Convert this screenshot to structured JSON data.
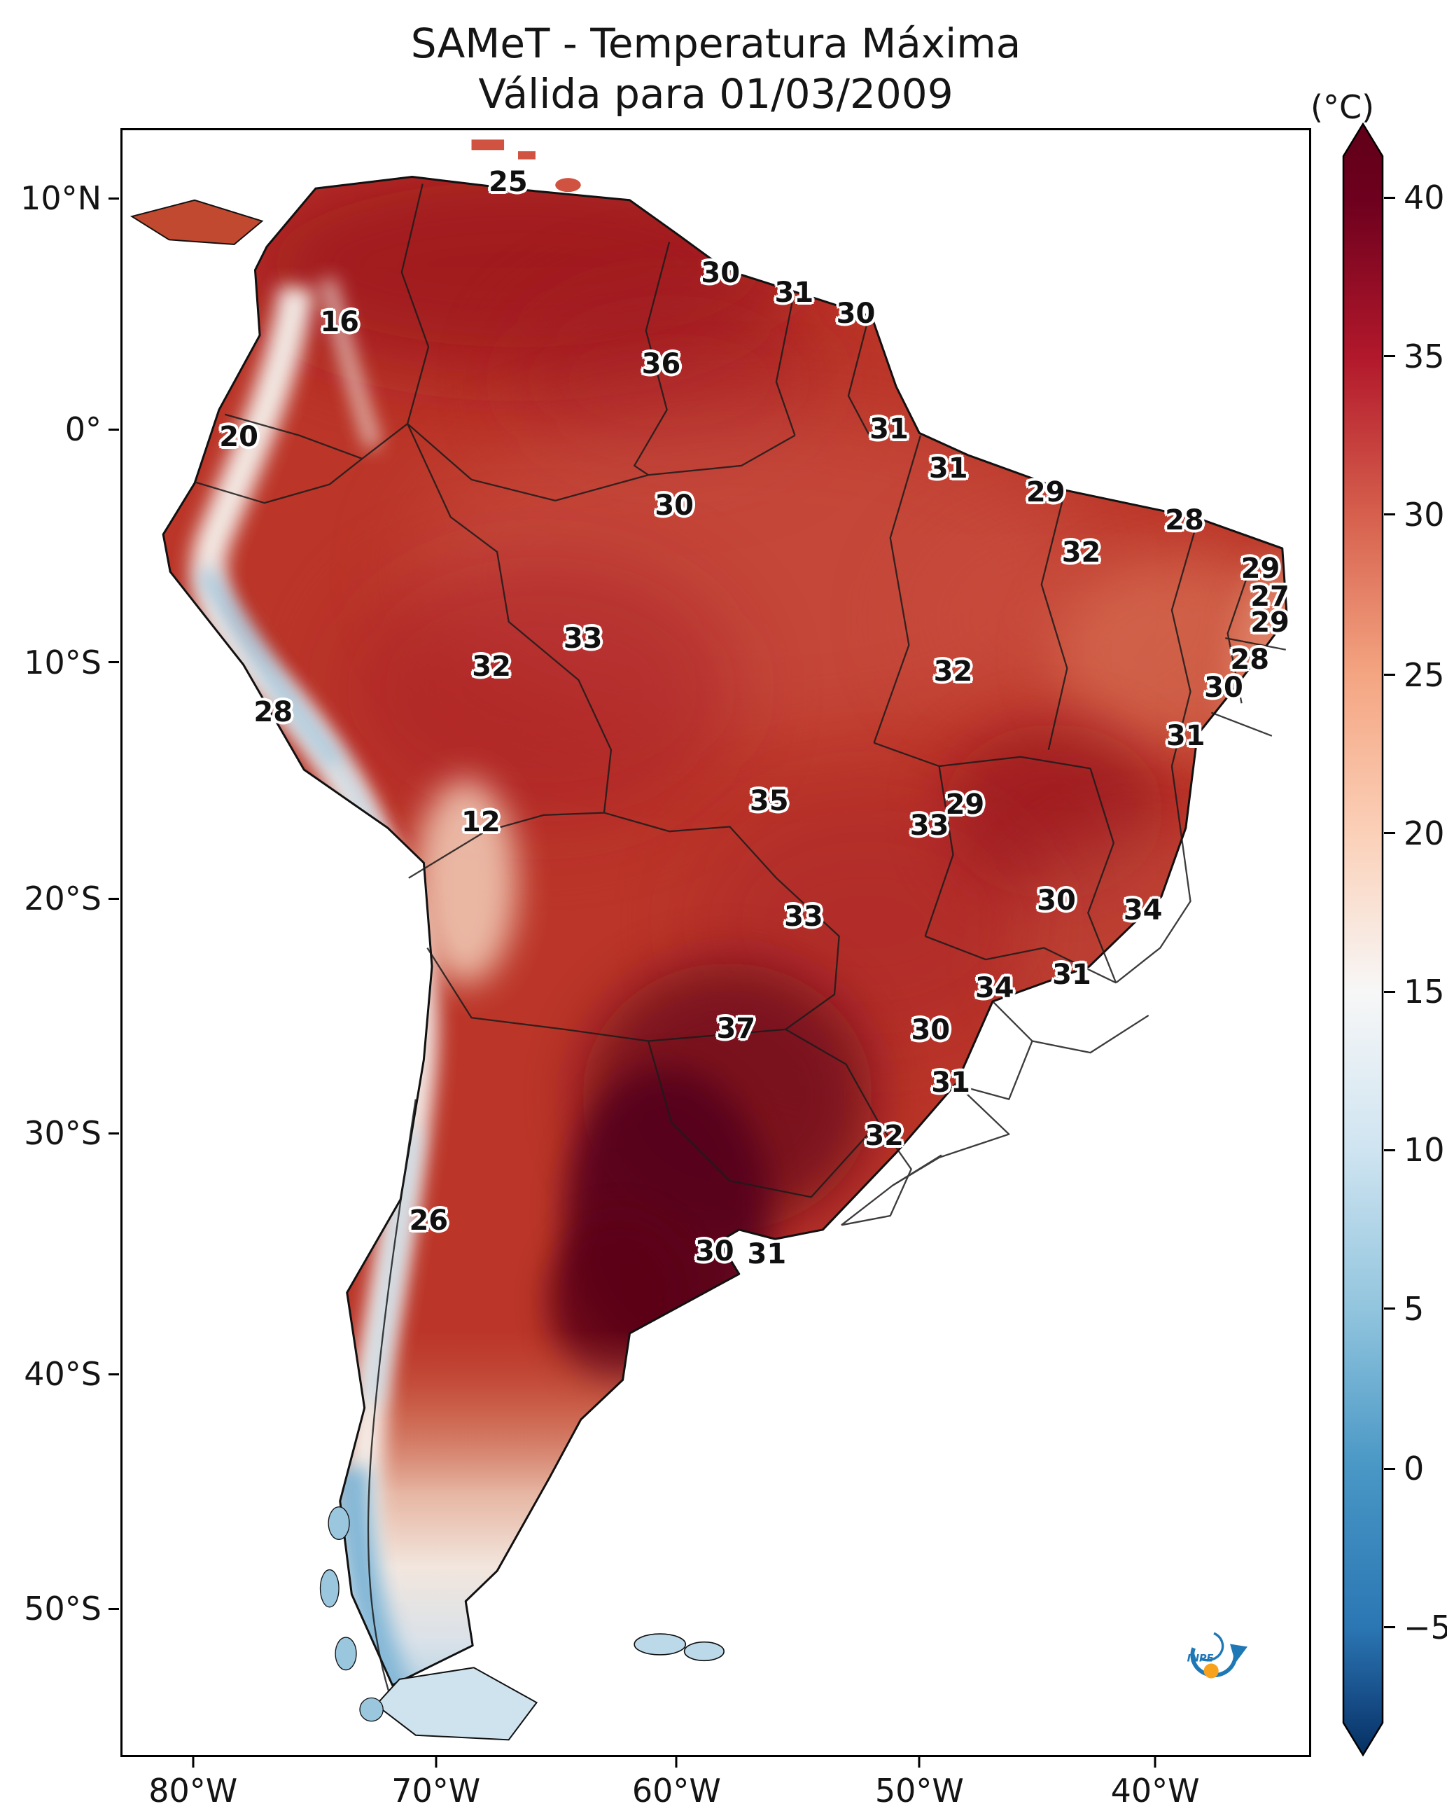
{
  "title": {
    "line1": "SAMeT - Temperatura Máxima",
    "line2": "Válida para 01/03/2009"
  },
  "colorbar": {
    "unit": "(°C)"
  },
  "logo": {
    "text": "INPE"
  },
  "chart_data": {
    "type": "heatmap",
    "title": "SAMeT - Temperatura Máxima",
    "subtitle": "Válida para 01/03/2009",
    "variable": "Temperatura Máxima",
    "valid_date": "01/03/2009",
    "unit": "°C",
    "region": "South America",
    "colormap": "red-white-blue (RdBu reversed), extended both ends",
    "colorbar_range": [
      -5,
      40
    ],
    "colorbar_ticks": [
      {
        "label": "40",
        "pct": 4.6
      },
      {
        "label": "35",
        "pct": 14.3
      },
      {
        "label": "30",
        "pct": 24.0
      },
      {
        "label": "25",
        "pct": 33.8
      },
      {
        "label": "20",
        "pct": 43.5
      },
      {
        "label": "15",
        "pct": 53.2
      },
      {
        "label": "10",
        "pct": 62.9
      },
      {
        "label": "5",
        "pct": 72.6
      },
      {
        "label": "0",
        "pct": 82.4
      },
      {
        "label": "−5",
        "pct": 92.1
      }
    ],
    "colorbar_colors": {
      "max": "#67001f",
      "mid": "#f7f7f7",
      "min": "#053061"
    },
    "x_axis": {
      "label": "",
      "ticks": [
        {
          "label": "80°W",
          "pct": 6.1
        },
        {
          "label": "70°W",
          "pct": 26.5
        },
        {
          "label": "60°W",
          "pct": 46.7
        },
        {
          "label": "50°W",
          "pct": 67.1
        },
        {
          "label": "40°W",
          "pct": 86.9
        }
      ]
    },
    "y_axis": {
      "label": "",
      "ticks": [
        {
          "label": "10°N",
          "pct": 4.3
        },
        {
          "label": "0°",
          "pct": 18.5
        },
        {
          "label": "10°S",
          "pct": 32.8
        },
        {
          "label": "20°S",
          "pct": 47.3
        },
        {
          "label": "30°S",
          "pct": 61.7
        },
        {
          "label": "40°S",
          "pct": 76.5
        },
        {
          "label": "50°S",
          "pct": 90.9
        }
      ]
    },
    "point_labels": [
      {
        "value": 25,
        "x_pct": 32.5,
        "y_pct": 3.2
      },
      {
        "value": 30,
        "x_pct": 50.4,
        "y_pct": 8.8
      },
      {
        "value": 31,
        "x_pct": 56.6,
        "y_pct": 10.0
      },
      {
        "value": 30,
        "x_pct": 61.8,
        "y_pct": 11.3
      },
      {
        "value": 16,
        "x_pct": 18.3,
        "y_pct": 11.8
      },
      {
        "value": 36,
        "x_pct": 45.4,
        "y_pct": 14.4
      },
      {
        "value": 20,
        "x_pct": 9.8,
        "y_pct": 18.9
      },
      {
        "value": 31,
        "x_pct": 64.6,
        "y_pct": 18.4
      },
      {
        "value": 31,
        "x_pct": 69.6,
        "y_pct": 20.8
      },
      {
        "value": 29,
        "x_pct": 77.8,
        "y_pct": 22.3
      },
      {
        "value": 28,
        "x_pct": 89.5,
        "y_pct": 24.0
      },
      {
        "value": 32,
        "x_pct": 80.8,
        "y_pct": 26.0
      },
      {
        "value": 29,
        "x_pct": 95.9,
        "y_pct": 27.0
      },
      {
        "value": 27,
        "x_pct": 96.7,
        "y_pct": 28.7
      },
      {
        "value": 29,
        "x_pct": 96.7,
        "y_pct": 30.3
      },
      {
        "value": 30,
        "x_pct": 46.5,
        "y_pct": 23.1
      },
      {
        "value": 33,
        "x_pct": 38.8,
        "y_pct": 31.3
      },
      {
        "value": 32,
        "x_pct": 31.1,
        "y_pct": 33.0
      },
      {
        "value": 32,
        "x_pct": 70.0,
        "y_pct": 33.3
      },
      {
        "value": 28,
        "x_pct": 95.0,
        "y_pct": 32.6
      },
      {
        "value": 30,
        "x_pct": 92.8,
        "y_pct": 34.3
      },
      {
        "value": 28,
        "x_pct": 12.7,
        "y_pct": 35.8
      },
      {
        "value": 31,
        "x_pct": 89.6,
        "y_pct": 37.3
      },
      {
        "value": 35,
        "x_pct": 54.5,
        "y_pct": 41.3
      },
      {
        "value": 29,
        "x_pct": 71.0,
        "y_pct": 41.5
      },
      {
        "value": 33,
        "x_pct": 68.0,
        "y_pct": 42.8
      },
      {
        "value": 12,
        "x_pct": 30.2,
        "y_pct": 42.6
      },
      {
        "value": 30,
        "x_pct": 78.7,
        "y_pct": 47.4
      },
      {
        "value": 34,
        "x_pct": 86.0,
        "y_pct": 48.0
      },
      {
        "value": 33,
        "x_pct": 57.4,
        "y_pct": 48.4
      },
      {
        "value": 31,
        "x_pct": 80.0,
        "y_pct": 52.0
      },
      {
        "value": 34,
        "x_pct": 73.5,
        "y_pct": 52.8
      },
      {
        "value": 37,
        "x_pct": 51.7,
        "y_pct": 55.3
      },
      {
        "value": 30,
        "x_pct": 68.1,
        "y_pct": 55.4
      },
      {
        "value": 31,
        "x_pct": 69.8,
        "y_pct": 58.6
      },
      {
        "value": 32,
        "x_pct": 64.2,
        "y_pct": 61.9
      },
      {
        "value": 26,
        "x_pct": 25.8,
        "y_pct": 67.1
      },
      {
        "value": 30,
        "x_pct": 49.9,
        "y_pct": 69.0
      },
      {
        "value": 31,
        "x_pct": 54.3,
        "y_pct": 69.2
      }
    ]
  }
}
